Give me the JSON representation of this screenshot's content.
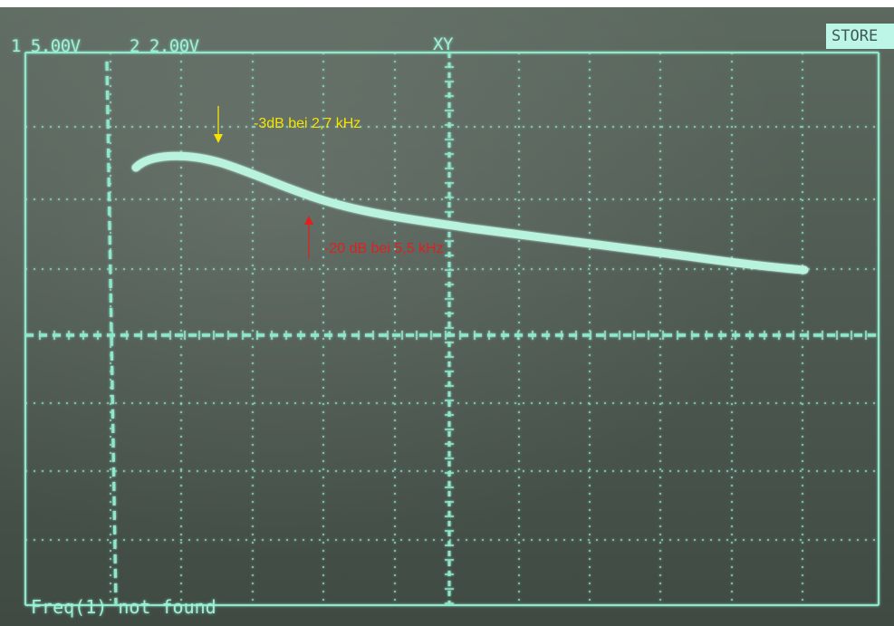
{
  "scope": {
    "channel1": "1 5.00V",
    "channel2": "2 2.00V",
    "mode": "XY",
    "store_label": "STORE",
    "status_message": "Freq(1) not found"
  },
  "annotations": {
    "yellow_label": "-3dB bei 2,7 kHz",
    "yellow_color": "#f5e400",
    "red_label": "-20 dB bei 5,5 kHz",
    "red_color": "#e02020"
  },
  "colors": {
    "trace": "#b9f3de",
    "grid": "#8fe8cc",
    "screen_bg": "#56635a"
  }
}
